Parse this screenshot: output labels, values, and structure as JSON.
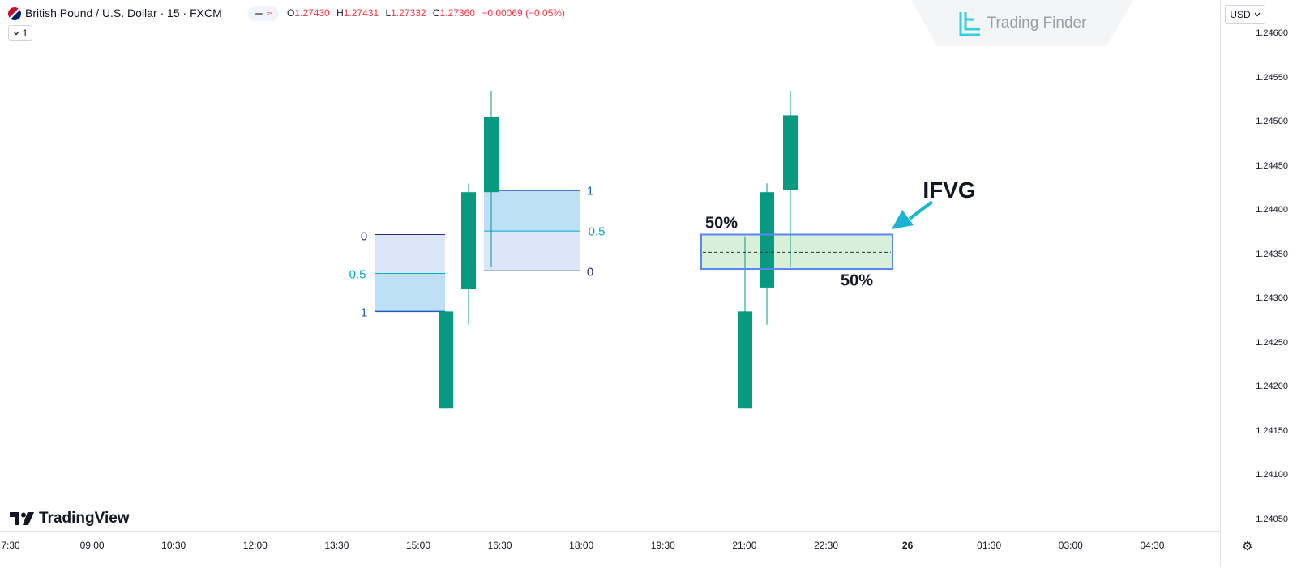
{
  "header": {
    "symbol": "British Pound / U.S. Dollar · 15 · FXCM",
    "ohlc": [
      {
        "k": "O",
        "v": "1.27430"
      },
      {
        "k": "H",
        "v": "1.27431"
      },
      {
        "k": "L",
        "v": "1.27332"
      },
      {
        "k": "C",
        "v": "1.27360"
      }
    ],
    "change": "−0.00069 (−0.05%)",
    "interval_badge": "1",
    "pill_wave": "≈"
  },
  "watermark": {
    "text": "Trading Finder"
  },
  "currency": "USD",
  "price_axis": [
    "1.24600",
    "1.24550",
    "1.24500",
    "1.24450",
    "1.24400",
    "1.24350",
    "1.24300",
    "1.24250",
    "1.24200",
    "1.24150",
    "1.24100",
    "1.24050"
  ],
  "time_axis": [
    "7:30",
    "09:00",
    "10:30",
    "12:00",
    "13:30",
    "15:00",
    "16:30",
    "18:00",
    "19:30",
    "21:00",
    "22:30",
    "26",
    "01:30",
    "03:00",
    "04:30"
  ],
  "brand": "TradingView",
  "fib_left": {
    "top": "0",
    "mid": "0.5",
    "bottom": "1"
  },
  "fib_right": {
    "top": "1",
    "mid": "0.5",
    "bottom": "0"
  },
  "ifvg": {
    "label": "IFVG",
    "top_pct": "50%",
    "bottom_pct": "50%"
  },
  "colors": {
    "bull": "#089981",
    "down": "#f23645",
    "fib_blue_fill": "#bde0f6",
    "fib_lav_fill": "#dce6fb",
    "ifvg_fill": "#d8efd9",
    "ifvg_border": "#5a86f0",
    "arrow": "#1bb4d3"
  },
  "chart_data": {
    "type": "candlestick",
    "price_unit": "USD",
    "groups": [
      {
        "name": "left",
        "candles": [
          {
            "open": 1.24285,
            "high": 1.24285,
            "low": 1.24175,
            "close": 1.24175
          },
          {
            "open": 1.2431,
            "high": 1.2443,
            "low": 1.2427,
            "close": 1.2442
          },
          {
            "open": 1.2442,
            "high": 1.24535,
            "low": 1.24335,
            "close": 1.24505
          }
        ],
        "fvg_bear": {
          "top": 1.24372,
          "mid": 1.24328,
          "bottom": 1.24285
        },
        "fvg_bull": {
          "top": 1.24422,
          "mid": 1.24376,
          "bottom": 1.24331
        }
      },
      {
        "name": "right",
        "candles": [
          {
            "open": 1.24285,
            "high": 1.2437,
            "low": 1.24175,
            "close": 1.24175
          },
          {
            "open": 1.24312,
            "high": 1.2443,
            "low": 1.2427,
            "close": 1.2442
          },
          {
            "open": 1.24422,
            "high": 1.24535,
            "low": 1.24335,
            "close": 1.24507
          }
        ],
        "ifvg_zone": {
          "top": 1.24372,
          "mid": 1.24352,
          "bottom": 1.24333
        }
      }
    ]
  }
}
